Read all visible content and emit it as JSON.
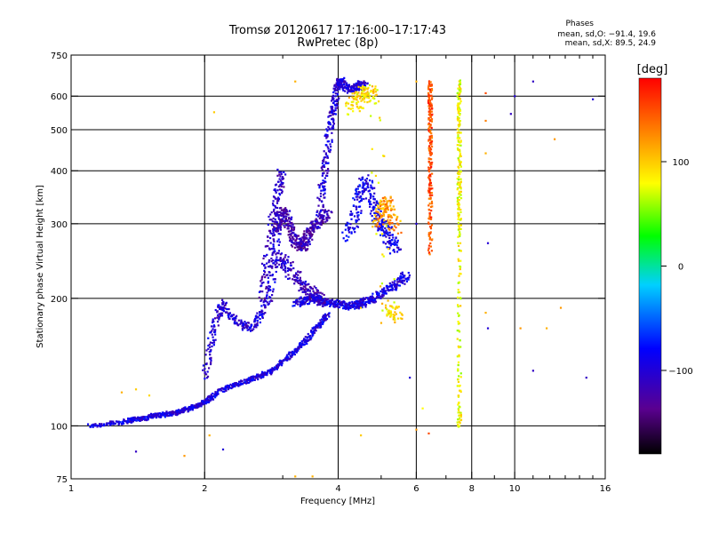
{
  "header": {
    "title_line1": "Tromsø 20120617 17:16:00–17:17:43",
    "title_line2": "RwPretec (8p)"
  },
  "stats": {
    "heading": "Phases",
    "line_o": "mean, sd,O: −91.4, 19.6",
    "line_x": "mean, sd,X:  89.5, 24.9"
  },
  "colorbar": {
    "unit_label": "[deg]",
    "range": [
      -180,
      180
    ],
    "ticks": [
      {
        "value": 100,
        "label": "100"
      },
      {
        "value": 0,
        "label": "0"
      },
      {
        "value": -100,
        "label": "−100"
      }
    ]
  },
  "chart_data": {
    "type": "scatter",
    "title": "Tromsø 20120617 17:16:00–17:17:43",
    "subtitle": "RwPretec (8p)",
    "xlabel": "Frequency [MHz]",
    "ylabel": "Stationary phase Virtual Height [km]",
    "x_scale": "log",
    "y_scale": "log",
    "xlim": [
      1,
      16
    ],
    "ylim": [
      75,
      750
    ],
    "grid": true,
    "x_ticks": [
      {
        "value": 1,
        "label": "1"
      },
      {
        "value": 2,
        "label": "2"
      },
      {
        "value": 4,
        "label": "4"
      },
      {
        "value": 6,
        "label": "6"
      },
      {
        "value": 8,
        "label": "8"
      },
      {
        "value": 10,
        "label": "10"
      },
      {
        "value": 16,
        "label": "16"
      }
    ],
    "x_minor_ticks": [
      3,
      5,
      7,
      9,
      11,
      12,
      13,
      14,
      15
    ],
    "y_ticks": [
      {
        "value": 75,
        "label": "75"
      },
      {
        "value": 100,
        "label": "100"
      },
      {
        "value": 200,
        "label": "200"
      },
      {
        "value": 300,
        "label": "300"
      },
      {
        "value": 400,
        "label": "400"
      },
      {
        "value": 500,
        "label": "500"
      },
      {
        "value": 600,
        "label": "600"
      },
      {
        "value": 750,
        "label": "750"
      }
    ],
    "x_grid": [
      2,
      4,
      6,
      8,
      10
    ],
    "y_grid": [
      100,
      200,
      300,
      400,
      500,
      600
    ],
    "color_scale": {
      "label": "[deg]",
      "min": -180,
      "max": 180,
      "palette": "rainbow"
    },
    "traces": [
      {
        "name": "",
        "phase": -95,
        "spread": 0.012,
        "x": [
          1.1,
          1.2,
          1.3,
          1.35,
          1.4,
          1.45,
          1.5,
          1.55,
          1.6,
          1.65,
          1.7,
          1.75,
          1.8,
          1.85,
          1.9,
          1.95,
          2.0,
          2.05,
          2.1,
          2.2,
          2.3,
          2.4,
          2.5,
          2.6,
          2.7,
          2.8,
          2.9,
          3.0,
          3.1,
          3.2,
          3.3,
          3.4,
          3.5,
          3.6,
          3.7,
          3.8
        ],
        "y": [
          100,
          101,
          102,
          103,
          104,
          104,
          105,
          106,
          106,
          107,
          107,
          108,
          109,
          110,
          111,
          112,
          114,
          116,
          118,
          122,
          124,
          126,
          128,
          130,
          132,
          134,
          138,
          142,
          146,
          150,
          155,
          160,
          166,
          172,
          178,
          184
        ]
      },
      {
        "name": "",
        "phase": -100,
        "spread": 0.02,
        "x": [
          2.0,
          2.05,
          2.1,
          2.15,
          2.2,
          2.3,
          2.4,
          2.5,
          2.6,
          2.7,
          2.8,
          2.85,
          2.9,
          2.95
        ],
        "y": [
          130,
          150,
          170,
          185,
          195,
          180,
          175,
          170,
          175,
          185,
          200,
          230,
          270,
          320
        ]
      },
      {
        "name": "",
        "phase": -120,
        "spread": 0.025,
        "x": [
          2.9,
          2.95,
          3.0,
          3.05,
          3.1,
          3.15,
          3.2,
          3.25,
          3.3,
          3.35,
          3.4,
          3.45,
          3.5,
          3.6,
          3.7,
          3.8
        ],
        "y": [
          290,
          310,
          320,
          315,
          300,
          285,
          275,
          268,
          265,
          268,
          275,
          285,
          295,
          300,
          310,
          320
        ]
      },
      {
        "name": "",
        "phase": -95,
        "spread": 0.02,
        "x": [
          3.2,
          3.3,
          3.4,
          3.5,
          3.6,
          3.7,
          3.8,
          3.9,
          4.0,
          4.1,
          4.2,
          4.3,
          4.4,
          4.5,
          4.6,
          4.7,
          4.8,
          5.0,
          5.2,
          5.4,
          5.6,
          5.7
        ],
        "y": [
          195,
          197,
          198,
          200,
          199,
          197,
          196,
          195,
          194,
          193,
          192,
          192,
          193,
          194,
          196,
          198,
          200,
          205,
          210,
          215,
          222,
          228
        ]
      },
      {
        "name": "",
        "phase": -100,
        "spread": 0.02,
        "x": [
          3.6,
          3.65,
          3.7,
          3.75,
          3.8,
          3.85,
          3.9,
          3.95,
          4.0,
          4.05,
          4.1,
          4.2,
          4.3,
          4.4,
          4.5,
          4.6
        ],
        "y": [
          300,
          340,
          380,
          420,
          470,
          520,
          560,
          600,
          640,
          650,
          640,
          630,
          620,
          630,
          640,
          630
        ]
      },
      {
        "name": "",
        "phase": -110,
        "spread": 0.025,
        "x": [
          2.7,
          2.75,
          2.8,
          2.85,
          2.9,
          2.95,
          3.0
        ],
        "y": [
          200,
          230,
          260,
          300,
          340,
          370,
          400
        ]
      },
      {
        "name": "",
        "phase": -90,
        "spread": 0.03,
        "x": [
          4.2,
          4.3,
          4.4,
          4.5,
          4.6,
          4.7,
          4.8,
          4.9,
          5.0,
          5.1,
          5.2,
          5.3,
          5.4
        ],
        "y": [
          280,
          300,
          330,
          360,
          380,
          360,
          330,
          310,
          300,
          290,
          280,
          270,
          260
        ]
      },
      {
        "name": "",
        "phase": 120,
        "spread": 0.03,
        "x": [
          4.9,
          5.0,
          5.1,
          5.2,
          5.3,
          5.4
        ],
        "y": [
          300,
          320,
          340,
          330,
          310,
          290
        ]
      },
      {
        "name": "",
        "phase": 90,
        "spread": 0.04,
        "x": [
          4.3,
          4.4,
          4.5,
          4.6,
          4.7,
          4.8,
          5.2,
          5.3,
          5.4
        ],
        "y": [
          560,
          580,
          600,
          610,
          620,
          600,
          190,
          185,
          180
        ]
      },
      {
        "name": "",
        "phase": 150,
        "spread": 0.01,
        "x": [
          6.45,
          6.45,
          6.45,
          6.45,
          6.45,
          6.45,
          6.45,
          6.45,
          6.45,
          6.45
        ],
        "y": [
          650,
          600,
          560,
          520,
          470,
          430,
          380,
          350,
          300,
          250
        ]
      },
      {
        "name": "",
        "phase": 80,
        "spread": 0.01,
        "x": [
          7.5,
          7.5,
          7.5,
          7.5,
          7.5,
          7.5,
          7.5,
          7.5,
          7.5,
          7.5,
          7.5,
          7.5
        ],
        "y": [
          650,
          580,
          520,
          460,
          400,
          360,
          320,
          280,
          200,
          140,
          110,
          98
        ]
      },
      {
        "name": "",
        "phase": -110,
        "spread": 0.03,
        "x": [
          2.9,
          3.0,
          3.1,
          3.2,
          3.3,
          3.4,
          3.5,
          3.6,
          3.7
        ],
        "y": [
          240,
          250,
          235,
          225,
          215,
          210,
          205,
          200,
          195
        ]
      }
    ],
    "scattered": [
      {
        "x": 1.3,
        "y": 120,
        "phase": 110
      },
      {
        "x": 1.4,
        "y": 122,
        "phase": 100
      },
      {
        "x": 1.5,
        "y": 118,
        "phase": 95
      },
      {
        "x": 1.8,
        "y": 85,
        "phase": 120
      },
      {
        "x": 2.2,
        "y": 88,
        "phase": -100
      },
      {
        "x": 2.05,
        "y": 95,
        "phase": 110
      },
      {
        "x": 1.4,
        "y": 87,
        "phase": -110
      },
      {
        "x": 2.1,
        "y": 550,
        "phase": 100
      },
      {
        "x": 3.2,
        "y": 650,
        "phase": 110
      },
      {
        "x": 3.2,
        "y": 76,
        "phase": 110
      },
      {
        "x": 4.5,
        "y": 95,
        "phase": 100
      },
      {
        "x": 6.0,
        "y": 98,
        "phase": 120
      },
      {
        "x": 6.4,
        "y": 96,
        "phase": 150
      },
      {
        "x": 8.6,
        "y": 610,
        "phase": 150
      },
      {
        "x": 8.6,
        "y": 525,
        "phase": 130
      },
      {
        "x": 8.6,
        "y": 440,
        "phase": 110
      },
      {
        "x": 8.7,
        "y": 270,
        "phase": -100
      },
      {
        "x": 8.6,
        "y": 185,
        "phase": 110
      },
      {
        "x": 8.7,
        "y": 170,
        "phase": -100
      },
      {
        "x": 10.3,
        "y": 170,
        "phase": 120
      },
      {
        "x": 11.0,
        "y": 135,
        "phase": -110
      },
      {
        "x": 11.8,
        "y": 170,
        "phase": 110
      },
      {
        "x": 12.3,
        "y": 475,
        "phase": 120
      },
      {
        "x": 12.7,
        "y": 190,
        "phase": 120
      },
      {
        "x": 14.5,
        "y": 130,
        "phase": -110
      },
      {
        "x": 15.0,
        "y": 590,
        "phase": -100
      },
      {
        "x": 11.0,
        "y": 650,
        "phase": -110
      },
      {
        "x": 10.0,
        "y": 600,
        "phase": -100
      },
      {
        "x": 6.0,
        "y": 650,
        "phase": 110
      },
      {
        "x": 9.8,
        "y": 545,
        "phase": -110
      },
      {
        "x": 4.5,
        "y": 190,
        "phase": 100
      },
      {
        "x": 5.0,
        "y": 175,
        "phase": 110
      },
      {
        "x": 3.5,
        "y": 76,
        "phase": 110
      },
      {
        "x": 6.2,
        "y": 110,
        "phase": 80
      },
      {
        "x": 5.8,
        "y": 130,
        "phase": -100
      },
      {
        "x": 6.0,
        "y": 300,
        "phase": -100
      }
    ]
  }
}
